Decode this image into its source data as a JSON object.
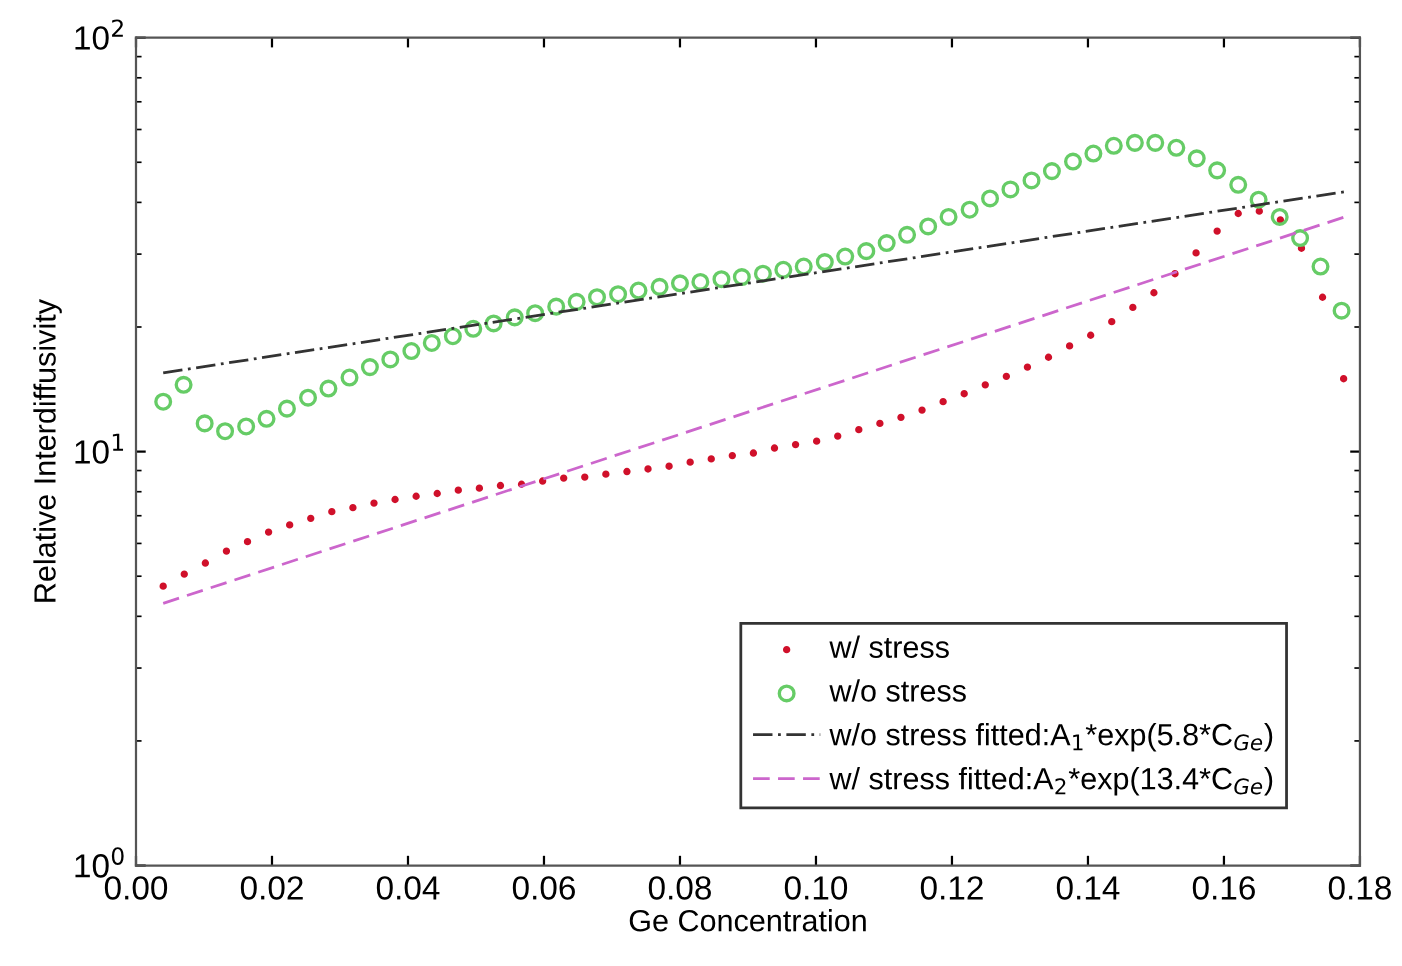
{
  "chart_data": {
    "type": "scatter",
    "xlabel": "Ge Concentration",
    "ylabel": "Relative Interdiffusivity",
    "log": "y",
    "grid": false,
    "legend": "bottom right",
    "xlim": [
      0,
      0.18
    ],
    "xticks": [
      {
        "value": 0,
        "label": "0.00"
      },
      0.02,
      0.04,
      0.06,
      0.08,
      {
        "value": 0.1,
        "label": "0.10"
      },
      0.12,
      0.14,
      0.16,
      0.18
    ],
    "ylim": [
      1,
      100
    ],
    "yticks": [
      {
        "value": 1,
        "label": "10$^{0}$"
      },
      {
        "value": 10,
        "label": "10$^{1}$"
      },
      {
        "value": 100,
        "label": "10$^{2}$"
      }
    ],
    "series": [
      {
        "name": "w/ stress",
        "marker": "point",
        "color": "#d0102a",
        "x": [
          0.004,
          0.0071,
          0.0102,
          0.0133,
          0.0164,
          0.0195,
          0.0226,
          0.0257,
          0.0288,
          0.0319,
          0.035,
          0.0381,
          0.0412,
          0.0443,
          0.0474,
          0.0505,
          0.0536,
          0.0567,
          0.0598,
          0.0629,
          0.066,
          0.0691,
          0.0722,
          0.0753,
          0.0784,
          0.0815,
          0.0846,
          0.0877,
          0.0908,
          0.0939,
          0.097,
          0.1001,
          0.1032,
          0.1063,
          0.1094,
          0.1125,
          0.1156,
          0.1187,
          0.1218,
          0.1249,
          0.128,
          0.1311,
          0.1342,
          0.1373,
          0.1404,
          0.1435,
          0.1466,
          0.1497,
          0.1528,
          0.1559,
          0.159,
          0.1621,
          0.1652,
          0.1683,
          0.1714,
          0.1745,
          0.1776
        ],
        "values": [
          4.73,
          5.06,
          5.38,
          5.75,
          6.06,
          6.39,
          6.65,
          6.9,
          7.16,
          7.32,
          7.51,
          7.66,
          7.8,
          7.92,
          8.07,
          8.16,
          8.28,
          8.34,
          8.49,
          8.63,
          8.68,
          8.82,
          8.95,
          9.08,
          9.22,
          9.43,
          9.6,
          9.78,
          9.92,
          10.2,
          10.4,
          10.6,
          10.9,
          11.3,
          11.7,
          12.1,
          12.6,
          13.2,
          13.8,
          14.5,
          15.2,
          16.0,
          16.9,
          18.0,
          19.1,
          20.6,
          22.3,
          24.2,
          26.9,
          30.2,
          34.1,
          37.6,
          38.1,
          36.3,
          31.0,
          23.6,
          15.0
        ]
      },
      {
        "name": "w/o stress",
        "marker": "circle",
        "color": "#66cc66",
        "x": [
          0.004,
          0.007,
          0.0101,
          0.0131,
          0.0162,
          0.0192,
          0.0222,
          0.0253,
          0.0283,
          0.0314,
          0.0344,
          0.0374,
          0.0405,
          0.0435,
          0.0466,
          0.0496,
          0.0526,
          0.0557,
          0.0587,
          0.0618,
          0.0648,
          0.0678,
          0.0709,
          0.0739,
          0.077,
          0.08,
          0.083,
          0.0861,
          0.0891,
          0.0922,
          0.0952,
          0.0982,
          0.1013,
          0.1043,
          0.1074,
          0.1104,
          0.1134,
          0.1165,
          0.1195,
          0.1226,
          0.1256,
          0.1286,
          0.1317,
          0.1347,
          0.1378,
          0.1408,
          0.1438,
          0.1469,
          0.1499,
          0.153,
          0.156,
          0.159,
          0.1621,
          0.1651,
          0.1682,
          0.1712,
          0.1742,
          0.1773
        ],
        "values": [
          13.2,
          14.5,
          11.7,
          11.2,
          11.5,
          12.0,
          12.7,
          13.5,
          14.2,
          15.1,
          16.0,
          16.7,
          17.5,
          18.3,
          19.0,
          19.8,
          20.4,
          21.1,
          21.6,
          22.4,
          23.0,
          23.6,
          24.0,
          24.5,
          25.0,
          25.5,
          25.7,
          26.1,
          26.4,
          26.9,
          27.5,
          28.0,
          28.7,
          29.6,
          30.5,
          31.9,
          33.4,
          35.0,
          36.9,
          38.4,
          40.9,
          43.0,
          45.2,
          47.6,
          50.2,
          52.5,
          54.8,
          55.7,
          55.7,
          54.2,
          51.1,
          47.8,
          44.1,
          40.6,
          36.9,
          32.8,
          28.0,
          21.9
        ]
      },
      {
        "name": "w/o stress fitted:A$_{1}$*exp(5.8*C$_{Ge}$)",
        "type": "line",
        "line_style": "dashdot",
        "marker": "none",
        "color": "#333333",
        "x": [
          0.004,
          0.178
        ],
        "values": [
          15.5,
          42.5
        ]
      },
      {
        "name": "w/ stress fitted:A$_{2}$*exp(13.4*C$_{Ge}$)",
        "type": "line",
        "line_style": "dashed",
        "marker": "none",
        "color": "#cc66cc",
        "x": [
          0.004,
          0.178
        ],
        "values": [
          4.3,
          37.0
        ]
      }
    ]
  }
}
